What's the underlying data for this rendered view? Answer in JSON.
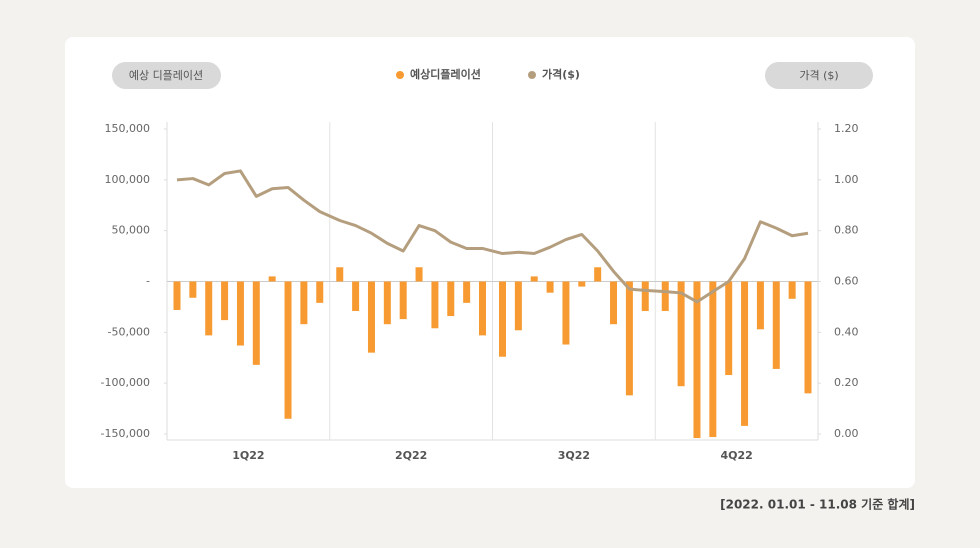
{
  "chart_data": {
    "type": "bar",
    "y_label": "예상 디플레이션",
    "y2_label": "가격 ($)",
    "annotation": "[2022. 01.01 - 11.08 기준 합계]",
    "categories": [
      null,
      null,
      null,
      null,
      null,
      null,
      null,
      null,
      null,
      null,
      null,
      null,
      null,
      null,
      null,
      null,
      null,
      null,
      null,
      null,
      null,
      null,
      null,
      null,
      null,
      null,
      null,
      null,
      null,
      null,
      null,
      null,
      null,
      null,
      null,
      null,
      null,
      null,
      null,
      null
    ],
    "groups": [
      "1Q22",
      "2Q22",
      "3Q22",
      "4Q22"
    ],
    "series": [
      {
        "name": "예상디플레이션",
        "type": "bar",
        "color": "#f79a32",
        "values": [
          -28000,
          -16000,
          -53000,
          -38000,
          -63000,
          -82000,
          5000,
          -135000,
          -42000,
          -21000,
          14000,
          -29000,
          -70000,
          -42000,
          -37000,
          14000,
          -46000,
          -34000,
          -21000,
          -53000,
          -74000,
          -48000,
          5000,
          -11000,
          -62000,
          -5000,
          14000,
          -42000,
          -112000,
          -29000,
          -29000,
          -103000,
          -154000,
          -153000,
          -92000,
          -142000,
          -47000,
          -86000,
          -17000,
          -110000
        ]
      },
      {
        "name": "가격($)",
        "type": "line",
        "axis": "y2",
        "color": "#b49e7e",
        "values": [
          1.0,
          1.005,
          0.98,
          1.025,
          1.035,
          0.935,
          0.965,
          0.97,
          0.92,
          0.875,
          0.84,
          0.82,
          0.79,
          0.75,
          0.72,
          0.82,
          0.8,
          0.755,
          0.73,
          0.73,
          0.71,
          0.715,
          0.71,
          0.735,
          0.765,
          0.785,
          0.72,
          0.64,
          0.57,
          0.565,
          0.56,
          0.555,
          0.52,
          0.56,
          0.6,
          0.69,
          0.835,
          0.81,
          0.78,
          0.79
        ]
      }
    ],
    "ylim": [
      -150000,
      150000
    ],
    "yticks": [
      {
        "value": 150000,
        "label": "150,000"
      },
      {
        "value": 100000,
        "label": "100,000"
      },
      {
        "value": 50000,
        "label": "50,000"
      },
      {
        "value": 0,
        "label": "-"
      },
      {
        "value": -50000,
        "label": "-50,000"
      },
      {
        "value": -100000,
        "label": "-100,000"
      },
      {
        "value": -150000,
        "label": "-150,000"
      }
    ],
    "y2lim": [
      0,
      1.2
    ],
    "y2ticks": [
      {
        "value": 1.2,
        "label": "1.20"
      },
      {
        "value": 1.0,
        "label": "1.00"
      },
      {
        "value": 0.8,
        "label": "0.80"
      },
      {
        "value": 0.6,
        "label": "0.60"
      },
      {
        "value": 0.4,
        "label": "0.40"
      },
      {
        "value": 0.2,
        "label": "0.20"
      },
      {
        "value": 0,
        "label": "0.00"
      }
    ]
  }
}
